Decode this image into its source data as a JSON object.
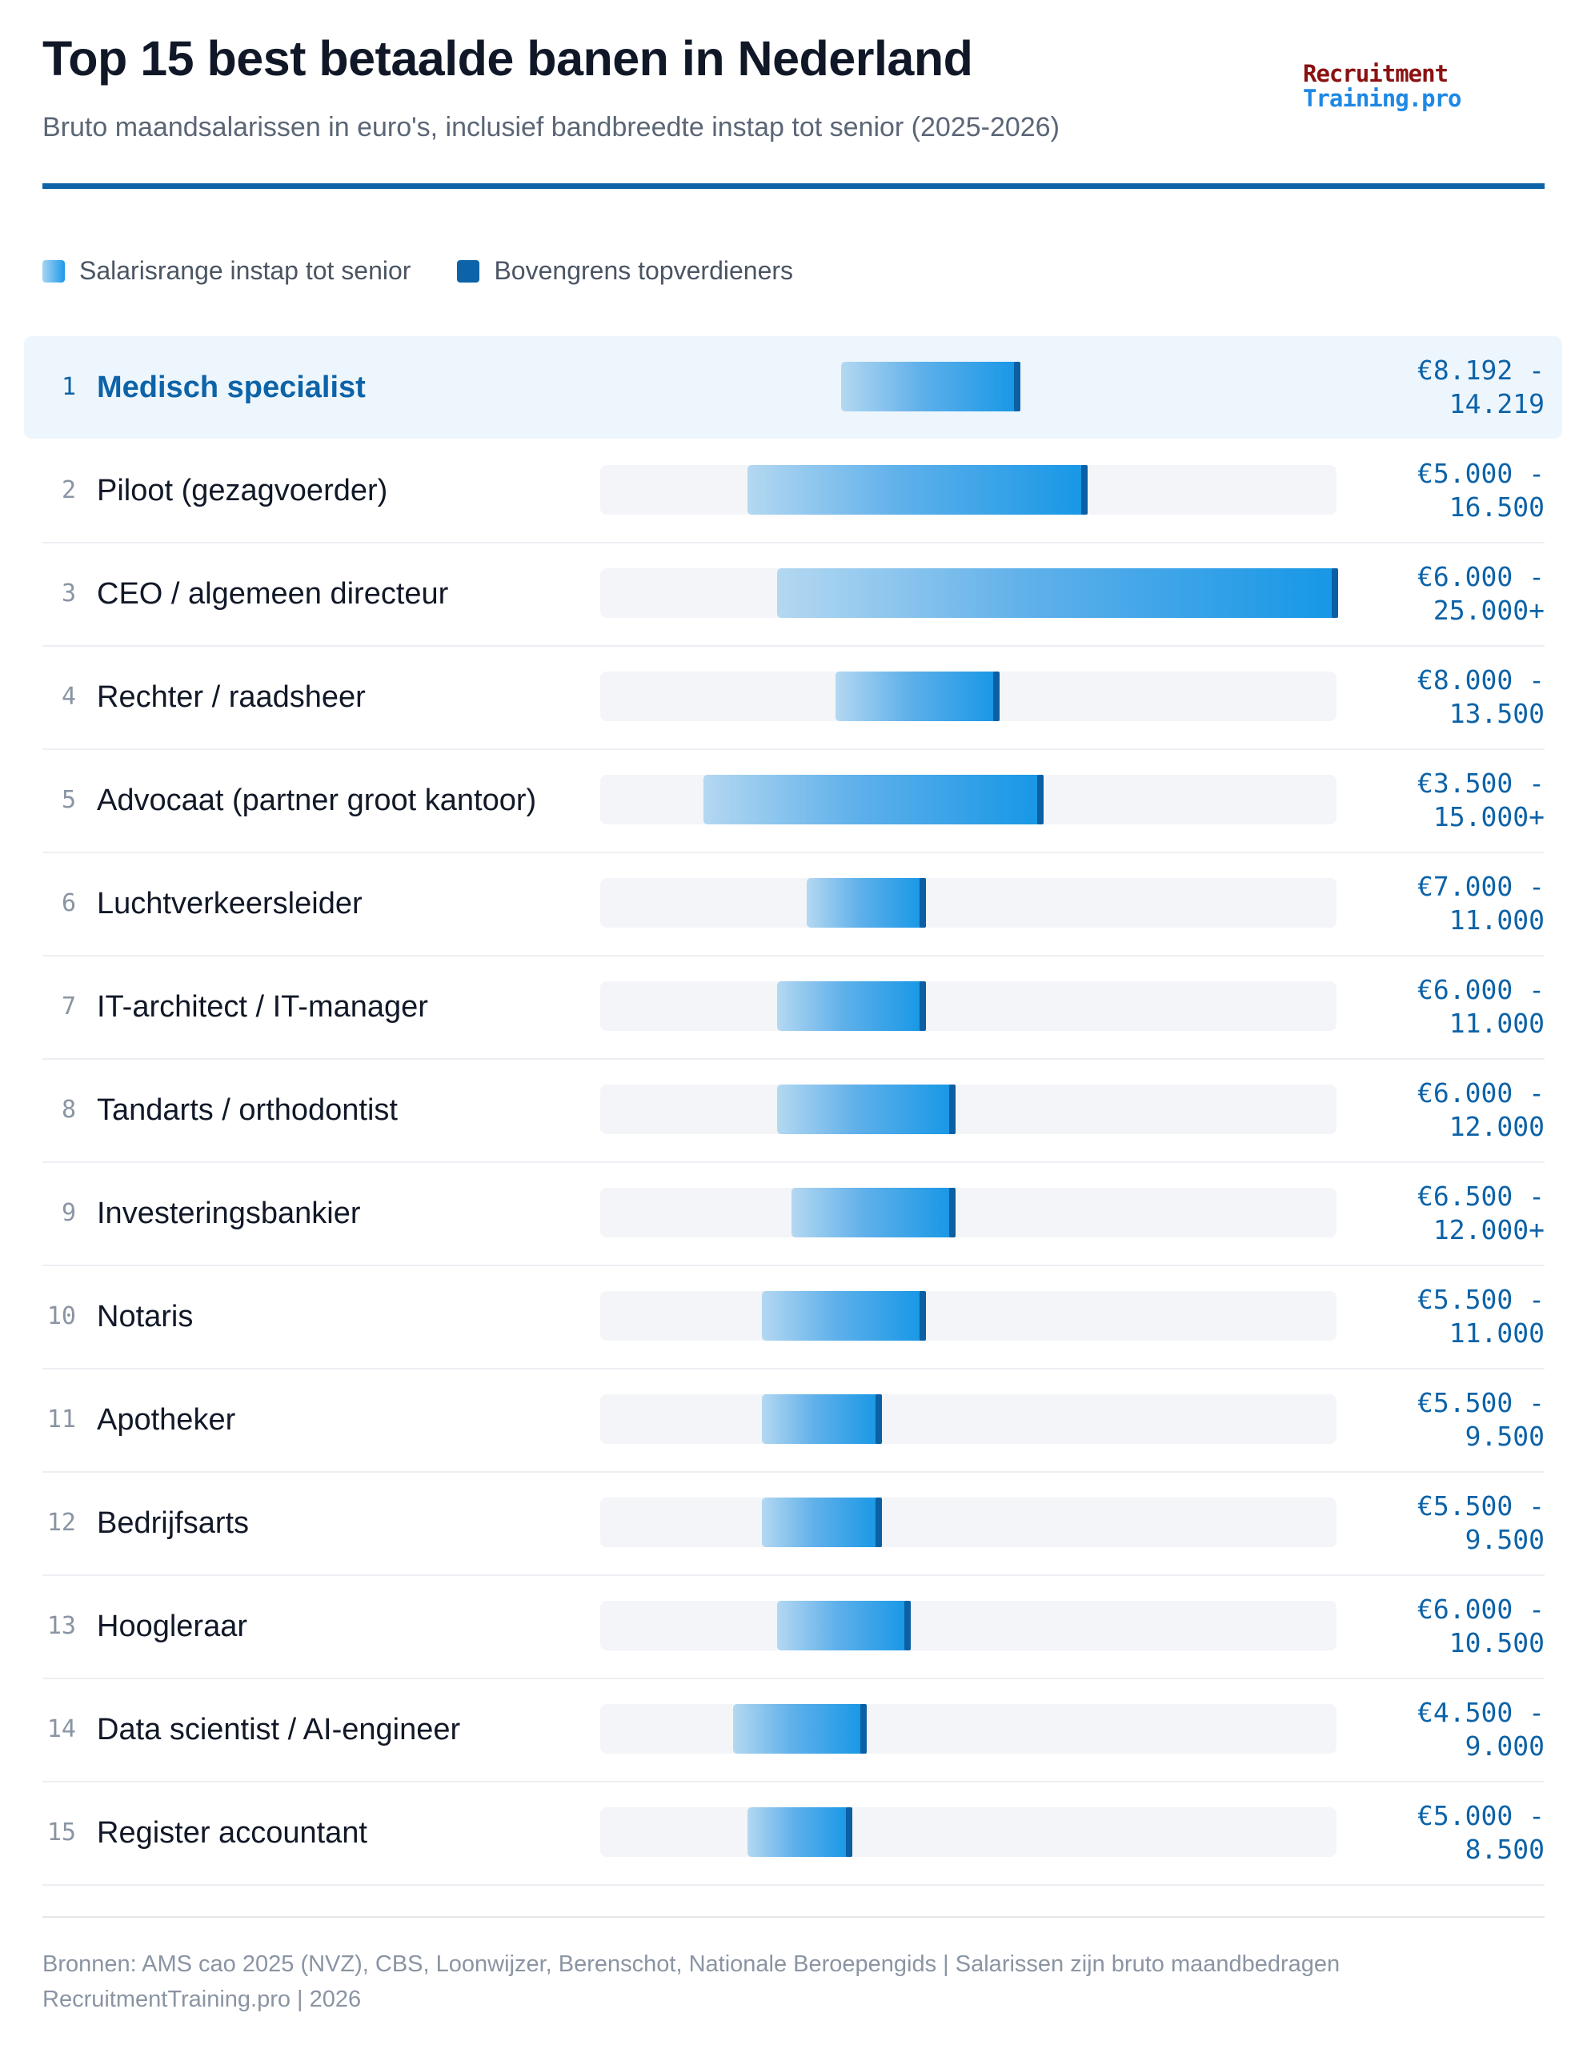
{
  "header": {
    "title": "Top 15 best betaalde banen in Nederland",
    "subtitle": "Bruto maandsalarissen in euro's, inclusief bandbreedte instap tot senior (2025-2026)",
    "logo_line1": "Recruitment",
    "logo_line2": "Training.pro"
  },
  "legend": {
    "range_label": "Salarisrange instap tot senior",
    "top_label": "Bovengrens topverdieners"
  },
  "colors": {
    "accent": "#0d63a8",
    "range_gradient_start": "#b4d8f1",
    "range_gradient_end": "#1697e6",
    "track": "#f3f5f8",
    "highlight_row": "#eef6fd"
  },
  "footer": {
    "sources": "Bronnen: AMS cao 2025 (NVZ), CBS, Loonwijzer, Berenschot, Nationale Beroepengids | Salarissen zijn bruto maandbedragen",
    "credit": "RecruitmentTraining.pro | 2026"
  },
  "chart_data": {
    "type": "bar",
    "orientation": "horizontal",
    "subtype": "range",
    "xlim": [
      0,
      25000
    ],
    "categories": [
      "Medisch specialist",
      "Piloot (gezagvoerder)",
      "CEO / algemeen directeur",
      "Rechter / raadsheer",
      "Advocaat (partner groot kantoor)",
      "Luchtverkeersleider",
      "IT-architect / IT-manager",
      "Tandarts / orthodontist",
      "Investeringsbankier",
      "Notaris",
      "Apotheker",
      "Bedrijfsarts",
      "Hoogleraar",
      "Data scientist / AI-engineer",
      "Register accountant"
    ],
    "rows": [
      {
        "rank": "1",
        "label": "Medisch specialist",
        "min": 8192,
        "max": 14219,
        "value_line1": "€8.192 -",
        "value_line2": "14.219",
        "highlight": true
      },
      {
        "rank": "2",
        "label": "Piloot (gezagvoerder)",
        "min": 5000,
        "max": 16500,
        "value_line1": "€5.000 -",
        "value_line2": "16.500"
      },
      {
        "rank": "3",
        "label": "CEO / algemeen directeur",
        "min": 6000,
        "max": 25000,
        "value_line1": "€6.000 -",
        "value_line2": "25.000+"
      },
      {
        "rank": "4",
        "label": "Rechter / raadsheer",
        "min": 8000,
        "max": 13500,
        "value_line1": "€8.000 -",
        "value_line2": "13.500"
      },
      {
        "rank": "5",
        "label": "Advocaat (partner groot kantoor)",
        "min": 3500,
        "max": 15000,
        "value_line1": "€3.500 -",
        "value_line2": "15.000+"
      },
      {
        "rank": "6",
        "label": "Luchtverkeersleider",
        "min": 7000,
        "max": 11000,
        "value_line1": "€7.000 -",
        "value_line2": "11.000"
      },
      {
        "rank": "7",
        "label": "IT-architect / IT-manager",
        "min": 6000,
        "max": 11000,
        "value_line1": "€6.000 -",
        "value_line2": "11.000"
      },
      {
        "rank": "8",
        "label": "Tandarts / orthodontist",
        "min": 6000,
        "max": 12000,
        "value_line1": "€6.000 -",
        "value_line2": "12.000"
      },
      {
        "rank": "9",
        "label": "Investeringsbankier",
        "min": 6500,
        "max": 12000,
        "value_line1": "€6.500 -",
        "value_line2": "12.000+"
      },
      {
        "rank": "10",
        "label": "Notaris",
        "min": 5500,
        "max": 11000,
        "value_line1": "€5.500 -",
        "value_line2": "11.000"
      },
      {
        "rank": "11",
        "label": "Apotheker",
        "min": 5500,
        "max": 9500,
        "value_line1": "€5.500 -",
        "value_line2": "9.500"
      },
      {
        "rank": "12",
        "label": "Bedrijfsarts",
        "min": 5500,
        "max": 9500,
        "value_line1": "€5.500 -",
        "value_line2": "9.500"
      },
      {
        "rank": "13",
        "label": "Hoogleraar",
        "min": 6000,
        "max": 10500,
        "value_line1": "€6.000 -",
        "value_line2": "10.500"
      },
      {
        "rank": "14",
        "label": "Data scientist / AI-engineer",
        "min": 4500,
        "max": 9000,
        "value_line1": "€4.500 -",
        "value_line2": "9.000"
      },
      {
        "rank": "15",
        "label": "Register accountant",
        "min": 5000,
        "max": 8500,
        "value_line1": "€5.000 -",
        "value_line2": "8.500"
      }
    ]
  }
}
